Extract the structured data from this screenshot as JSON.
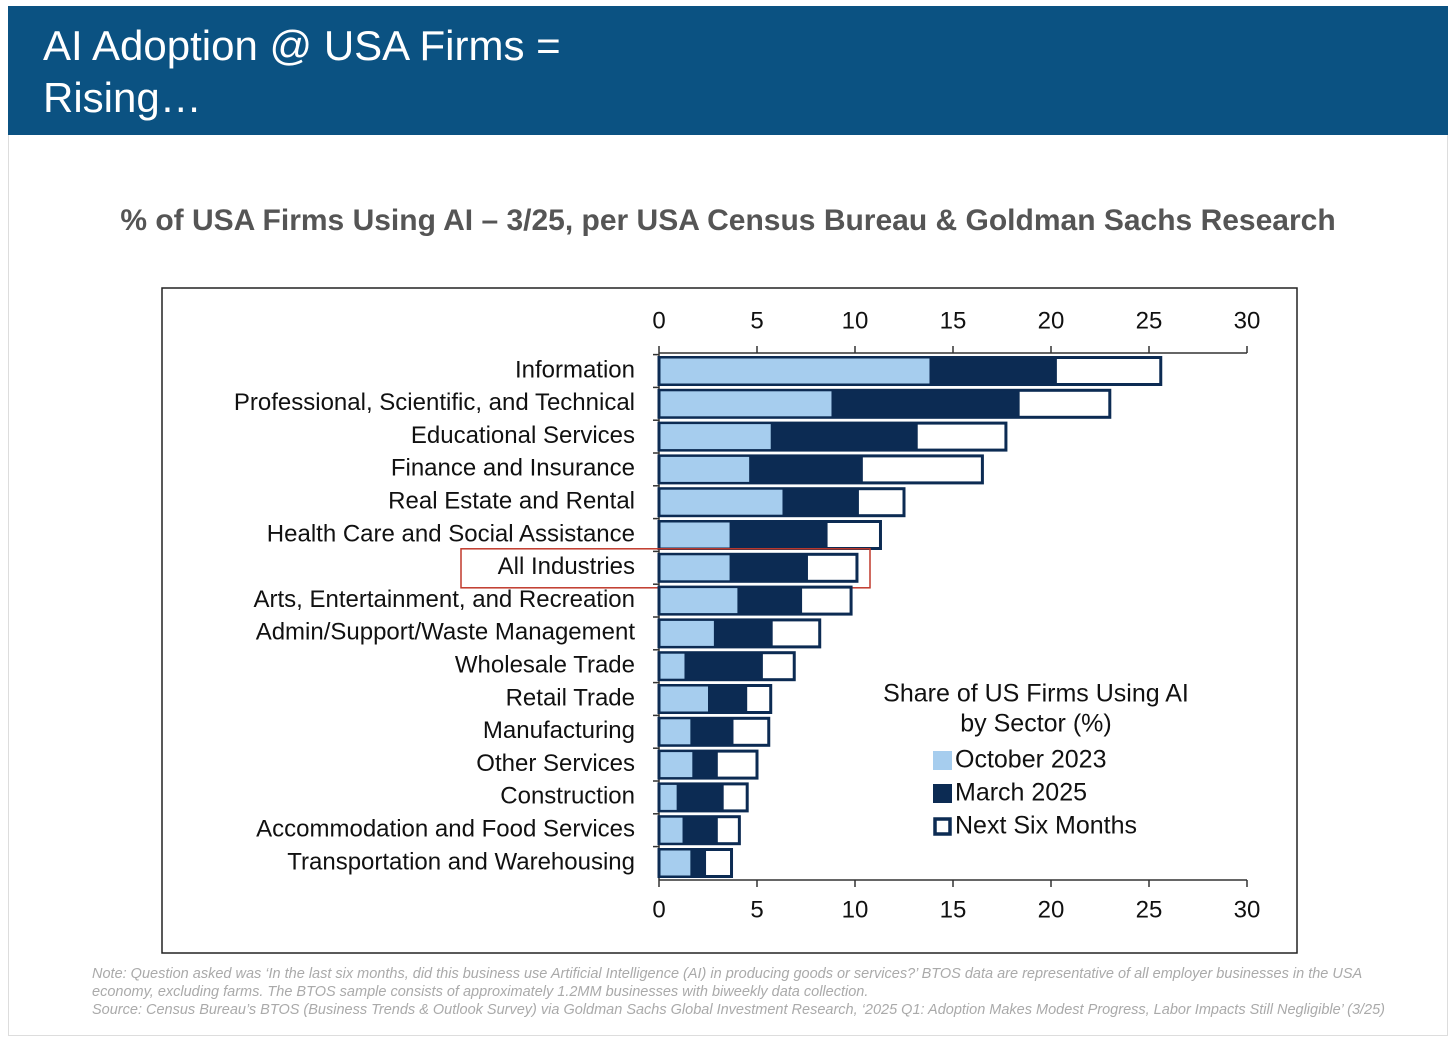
{
  "header": {
    "title": "AI Adoption @ USA Firms = Rising…"
  },
  "chart_data": {
    "type": "overlap_bar_h",
    "title": "% of USA Firms Using AI – 3/25, per USA Census Bureau & Goldman Sachs Research",
    "categories": [
      "Information",
      "Professional, Scientific, and Technical",
      "Educational Services",
      "Finance and Insurance",
      "Real Estate and Rental",
      "Health Care and Social Assistance",
      "All Industries",
      "Arts, Entertainment, and Recreation",
      "Admin/Support/Waste Management",
      "Wholesale Trade",
      "Retail Trade",
      "Manufacturing",
      "Other Services",
      "Construction",
      "Accommodation and Food Services",
      "Transportation and Warehousing"
    ],
    "series": [
      {
        "name": "October 2023",
        "color": "#a6cdee",
        "values": [
          13.8,
          8.8,
          5.7,
          4.6,
          6.3,
          3.6,
          3.6,
          4.0,
          2.8,
          1.3,
          2.5,
          1.6,
          1.7,
          0.9,
          1.2,
          1.6
        ]
      },
      {
        "name": "March 2025",
        "color": "#0c2b53",
        "values": [
          20.3,
          18.4,
          13.2,
          10.4,
          10.2,
          8.6,
          7.6,
          7.3,
          5.8,
          5.3,
          4.5,
          3.8,
          3.0,
          3.3,
          3.0,
          2.4
        ]
      },
      {
        "name": "Next Six Months",
        "color": "#0c2b53",
        "values": [
          25.6,
          23.0,
          17.7,
          16.5,
          12.5,
          11.3,
          10.1,
          9.8,
          8.2,
          6.9,
          5.7,
          5.6,
          5.0,
          4.5,
          4.1,
          3.7
        ]
      }
    ],
    "legend_title": [
      "Share of US Firms Using AI",
      "by Sector (%)"
    ],
    "highlight": "All Industries",
    "xlim": [
      0,
      30
    ],
    "xticks": [
      0,
      5,
      10,
      15,
      20,
      25,
      30
    ]
  },
  "footer": {
    "note": "Note: Question asked was ‘In the last six months, did this business use Artificial Intelligence (AI) in producing goods or services?’ BTOS data are representative of all employer businesses in the USA economy, excluding farms. The BTOS sample consists of approximately 1.2MM businesses with biweekly data collection.",
    "source": "Source: Census Bureau’s BTOS (Business Trends & Outlook Survey) via Goldman Sachs Global Investment Research, ‘2025 Q1: Adoption Makes Modest Progress, Labor Impacts Still Negligible’ (3/25)"
  }
}
